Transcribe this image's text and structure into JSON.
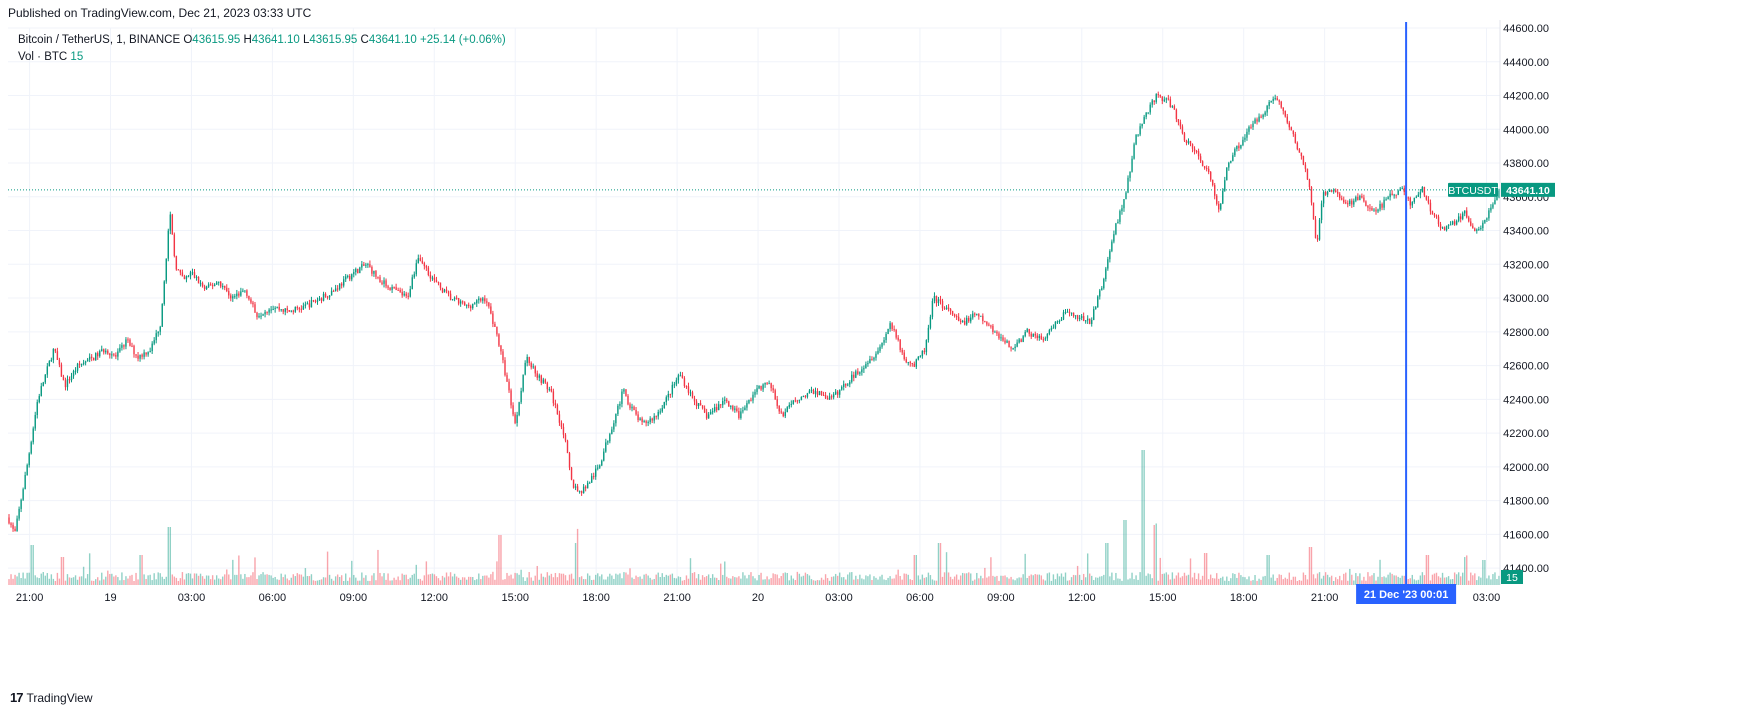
{
  "header": {
    "published": "Published on TradingView.com, Dec 21, 2023 03:33 UTC"
  },
  "legend": {
    "symbol": "Bitcoin / TetherUS, 1, BINANCE",
    "o_label": "O",
    "o_value": "43615.95",
    "h_label": "H",
    "h_value": "43641.10",
    "l_label": "L",
    "l_value": "43615.95",
    "c_label": "C",
    "c_value": "43641.10",
    "change": "+25.14 (+0.06%)",
    "vol_label": "Vol · BTC",
    "vol_value": "15"
  },
  "footer": {
    "brand": "TradingView",
    "brand_mark": "17"
  },
  "colors": {
    "up": "#089981",
    "down": "#f23645",
    "grid": "#f0f3fa",
    "crosshair": "#2962ff",
    "price_tag": "#089981"
  },
  "chart_data": {
    "type": "candlestick",
    "title": "Bitcoin / TetherUS, 1, BINANCE",
    "interval": "1 minute",
    "ylim": [
      41300,
      44600
    ],
    "y_ticks": [
      "44600.00",
      "44400.00",
      "44200.00",
      "44000.00",
      "43800.00",
      "43600.00",
      "43400.00",
      "43200.00",
      "43000.00",
      "42800.00",
      "42600.00",
      "42400.00",
      "42200.00",
      "42000.00",
      "41800.00",
      "41600.00",
      "41400.00"
    ],
    "x_ticks": [
      "21:00",
      "19",
      "03:00",
      "06:00",
      "09:00",
      "12:00",
      "15:00",
      "18:00",
      "21:00",
      "20",
      "03:00",
      "06:00",
      "09:00",
      "12:00",
      "15:00",
      "18:00",
      "21:00",
      "03:00"
    ],
    "x_tick_hours": [
      21,
      24,
      27,
      30,
      33,
      36,
      39,
      42,
      45,
      48,
      51,
      54,
      57,
      60,
      63,
      66,
      69,
      75
    ],
    "x_range_hours": [
      20.2,
      75.5
    ],
    "last_price_label": "BTCUSDT",
    "last_price": "43641.10",
    "last_price_value": 43641.1,
    "volume_label": "15",
    "crosshair_label": "21 Dec '23   00:01",
    "crosshair_hour": 72.02,
    "price_path": [
      [
        20.2,
        41700
      ],
      [
        20.45,
        41600
      ],
      [
        20.9,
        42000
      ],
      [
        21.3,
        42400
      ],
      [
        21.6,
        42550
      ],
      [
        21.9,
        42700
      ],
      [
        22.3,
        42480
      ],
      [
        22.8,
        42600
      ],
      [
        23.4,
        42650
      ],
      [
        23.8,
        42700
      ],
      [
        24.2,
        42650
      ],
      [
        24.6,
        42750
      ],
      [
        25.0,
        42650
      ],
      [
        25.5,
        42700
      ],
      [
        25.85,
        42850
      ],
      [
        26.2,
        43500
      ],
      [
        26.4,
        43200
      ],
      [
        26.7,
        43100
      ],
      [
        27.0,
        43150
      ],
      [
        27.5,
        43050
      ],
      [
        28.0,
        43100
      ],
      [
        28.5,
        43000
      ],
      [
        29.0,
        43050
      ],
      [
        29.4,
        42900
      ],
      [
        30.0,
        42950
      ],
      [
        30.6,
        42920
      ],
      [
        31.2,
        42950
      ],
      [
        31.8,
        43000
      ],
      [
        32.3,
        43050
      ],
      [
        33.0,
        43150
      ],
      [
        33.5,
        43200
      ],
      [
        34.0,
        43100
      ],
      [
        34.5,
        43050
      ],
      [
        35.0,
        43000
      ],
      [
        35.4,
        43250
      ],
      [
        36.0,
        43100
      ],
      [
        36.6,
        43000
      ],
      [
        37.2,
        42950
      ],
      [
        37.9,
        43000
      ],
      [
        38.3,
        42800
      ],
      [
        38.7,
        42500
      ],
      [
        39.0,
        42250
      ],
      [
        39.4,
        42650
      ],
      [
        39.8,
        42550
      ],
      [
        40.3,
        42450
      ],
      [
        40.8,
        42200
      ],
      [
        41.1,
        41900
      ],
      [
        41.4,
        41850
      ],
      [
        41.7,
        41900
      ],
      [
        42.1,
        42000
      ],
      [
        42.5,
        42200
      ],
      [
        43.0,
        42450
      ],
      [
        43.3,
        42350
      ],
      [
        43.7,
        42250
      ],
      [
        44.2,
        42300
      ],
      [
        44.6,
        42400
      ],
      [
        45.1,
        42550
      ],
      [
        45.6,
        42400
      ],
      [
        46.1,
        42300
      ],
      [
        46.8,
        42400
      ],
      [
        47.3,
        42300
      ],
      [
        47.9,
        42450
      ],
      [
        48.4,
        42500
      ],
      [
        48.9,
        42300
      ],
      [
        49.4,
        42400
      ],
      [
        50.1,
        42450
      ],
      [
        50.7,
        42400
      ],
      [
        51.3,
        42500
      ],
      [
        51.9,
        42600
      ],
      [
        52.5,
        42700
      ],
      [
        52.9,
        42850
      ],
      [
        53.4,
        42650
      ],
      [
        53.8,
        42600
      ],
      [
        54.2,
        42700
      ],
      [
        54.5,
        43000
      ],
      [
        54.9,
        42950
      ],
      [
        55.5,
        42850
      ],
      [
        56.1,
        42900
      ],
      [
        56.8,
        42800
      ],
      [
        57.4,
        42700
      ],
      [
        58.0,
        42800
      ],
      [
        58.6,
        42750
      ],
      [
        59.3,
        42900
      ],
      [
        59.8,
        42900
      ],
      [
        60.3,
        42850
      ],
      [
        60.8,
        43100
      ],
      [
        61.2,
        43400
      ],
      [
        61.6,
        43600
      ],
      [
        62.0,
        43950
      ],
      [
        62.4,
        44100
      ],
      [
        62.8,
        44200
      ],
      [
        63.3,
        44150
      ],
      [
        63.8,
        43950
      ],
      [
        64.3,
        43850
      ],
      [
        64.8,
        43700
      ],
      [
        65.1,
        43500
      ],
      [
        65.4,
        43800
      ],
      [
        65.8,
        43900
      ],
      [
        66.2,
        44000
      ],
      [
        66.7,
        44100
      ],
      [
        67.2,
        44200
      ],
      [
        67.6,
        44050
      ],
      [
        68.1,
        43850
      ],
      [
        68.4,
        43700
      ],
      [
        68.7,
        43300
      ],
      [
        68.9,
        43600
      ],
      [
        69.3,
        43650
      ],
      [
        69.8,
        43550
      ],
      [
        70.3,
        43600
      ],
      [
        70.8,
        43500
      ],
      [
        71.4,
        43600
      ],
      [
        71.9,
        43650
      ],
      [
        72.2,
        43550
      ],
      [
        72.6,
        43650
      ],
      [
        73.0,
        43500
      ],
      [
        73.4,
        43400
      ],
      [
        73.8,
        43450
      ],
      [
        74.2,
        43500
      ],
      [
        74.6,
        43400
      ],
      [
        74.9,
        43450
      ],
      [
        75.2,
        43550
      ],
      [
        75.5,
        43641
      ]
    ],
    "volume_spikes": [
      [
        21.1,
        40
      ],
      [
        22.2,
        28
      ],
      [
        25.1,
        30
      ],
      [
        26.2,
        58
      ],
      [
        38.4,
        50
      ],
      [
        41.3,
        42
      ],
      [
        53.8,
        30
      ],
      [
        54.7,
        42
      ],
      [
        60.9,
        42
      ],
      [
        61.6,
        65
      ],
      [
        62.3,
        135
      ],
      [
        62.7,
        60
      ],
      [
        64.6,
        32
      ],
      [
        66.9,
        30
      ],
      [
        68.5,
        38
      ],
      [
        72.8,
        30
      ],
      [
        74.9,
        25
      ]
    ]
  }
}
